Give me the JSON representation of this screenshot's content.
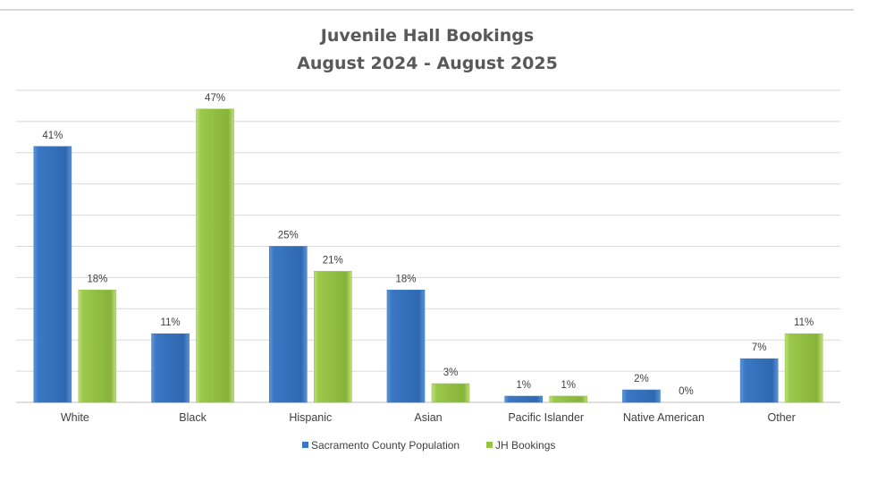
{
  "chart_data": {
    "type": "bar",
    "title": "Juvenile Hall Bookings",
    "subtitle": "August 2024 - August 2025",
    "xlabel": "",
    "ylabel": "",
    "ylim": [
      0,
      50
    ],
    "grid_step": 5,
    "grid": true,
    "legend_position": "bottom",
    "categories": [
      "White",
      "Black",
      "Hispanic",
      "Asian",
      "Pacific Islander",
      "Native American",
      "Other"
    ],
    "series": [
      {
        "name": "Sacramento County Population",
        "color": "#3a77c4",
        "values": [
          41,
          11,
          25,
          18,
          1,
          2,
          7
        ],
        "labels": [
          "41%",
          "11%",
          "25%",
          "18%",
          "1%",
          "2%",
          "7%"
        ]
      },
      {
        "name": "JH Bookings",
        "color": "#96c443",
        "values": [
          18,
          47,
          21,
          3,
          1,
          0,
          11
        ],
        "labels": [
          "18%",
          "47%",
          "21%",
          "3%",
          "1%",
          "0%",
          "11%"
        ]
      }
    ]
  }
}
